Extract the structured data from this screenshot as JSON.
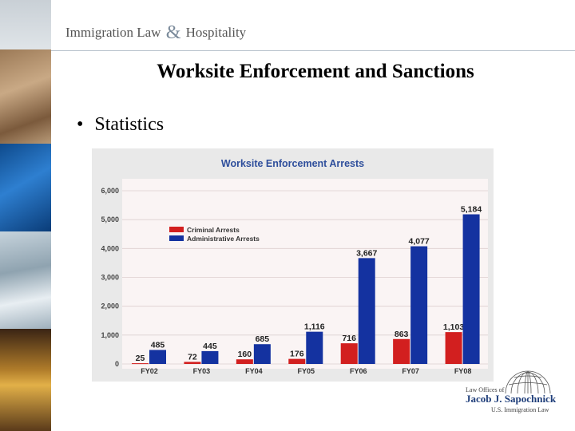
{
  "header": {
    "left": "Immigration Law",
    "amp": "&",
    "right": "Hospitality"
  },
  "slide": {
    "title": "Worksite Enforcement and Sanctions",
    "bullet": "Statistics"
  },
  "logo": {
    "law_offices": "Law Offices of",
    "name": "Jacob J. Sapochnick",
    "subtitle": "U.S. Immigration Law"
  },
  "chart_data": {
    "type": "bar",
    "title": "Worksite Enforcement Arrests",
    "categories": [
      "FY02",
      "FY03",
      "FY04",
      "FY05",
      "FY06",
      "FY07",
      "FY08"
    ],
    "series": [
      {
        "name": "Criminal Arrests",
        "color": "#d21f1f",
        "values": [
          25,
          72,
          160,
          176,
          716,
          863,
          1103
        ],
        "labels": [
          "25",
          "72",
          "160",
          "176",
          "716",
          "863",
          "1,103"
        ]
      },
      {
        "name": "Administrative Arrests",
        "color": "#1432a0",
        "values": [
          485,
          445,
          685,
          1116,
          3667,
          4077,
          5184
        ],
        "labels": [
          "485",
          "445",
          "685",
          "1,116",
          "3,667",
          "4,077",
          "5,184"
        ]
      }
    ],
    "yticks": [
      "0",
      "1,000",
      "2,000",
      "3,000",
      "4,000",
      "5,000",
      "6,000"
    ],
    "ylim": [
      0,
      6000
    ],
    "xlabel": "",
    "ylabel": "",
    "grid": true,
    "legend": "top-left"
  },
  "colors": {
    "accent": "#2f4f9c",
    "criminal": "#d21f1f",
    "administrative": "#1432a0"
  }
}
